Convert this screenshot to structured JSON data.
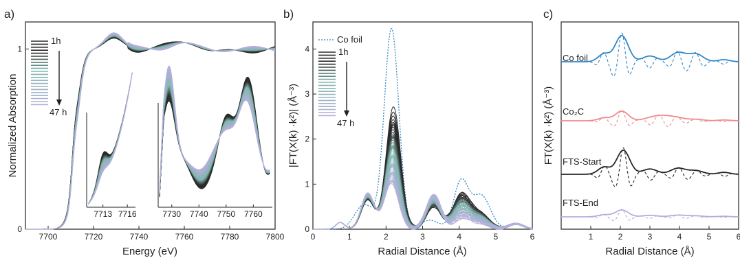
{
  "figure": {
    "panels": [
      "a)",
      "b)",
      "c)"
    ]
  },
  "colors": {
    "dark": "#2b2b2b",
    "teal": "#7fb7ae",
    "lavender": "#b6b0dd",
    "co_foil": "#2f87c6",
    "co2c": "#f08a8a",
    "fts_start": "#262626",
    "fts_end": "#b3aee0"
  },
  "chart_data": [
    {
      "panel": "a)",
      "type": "line",
      "xlabel": "Energy (eV)",
      "ylabel": "Normalized Absorption",
      "xlim": [
        7690,
        7800
      ],
      "ylim": [
        0,
        1.15
      ],
      "xticks": [
        "7700",
        "7720",
        "7740",
        "7760",
        "7780",
        "7800"
      ],
      "yticks": [
        "0",
        "1"
      ],
      "legend": {
        "start": "1h",
        "end": "47 h"
      },
      "series_count": 47,
      "edge_energy": 7712,
      "first_peak": {
        "x": 7729,
        "y": 1.06
      },
      "insets": [
        {
          "xticks": [
            "7713",
            "7716"
          ],
          "xlim": [
            7711,
            7717
          ]
        },
        {
          "xticks": [
            "7730",
            "7740",
            "7750",
            "7760"
          ],
          "xlim": [
            7725,
            7767
          ]
        }
      ]
    },
    {
      "panel": "b)",
      "type": "line",
      "xlabel": "Radial Distance (Å)",
      "ylabel": "|FT(X(k) ·k²)| (Å⁻³)",
      "xlim": [
        0,
        6
      ],
      "ylim": [
        0,
        4.6
      ],
      "xticks": [
        "0",
        "1",
        "2",
        "3",
        "4",
        "5",
        "6"
      ],
      "yticks": [
        "0",
        "1",
        "2",
        "3",
        "4"
      ],
      "legend": {
        "reference": "Co foil",
        "start": "1h",
        "end": "47 h"
      },
      "reference_peaks": [
        {
          "x": 2.15,
          "y": 4.45
        },
        {
          "x": 4.05,
          "y": 1.05
        },
        {
          "x": 4.6,
          "y": 0.75
        }
      ],
      "sample_main_peak": {
        "x": 2.2,
        "y_first": 2.7,
        "y_last": 1.0
      },
      "sample_secondary_peaks": [
        {
          "x": 0.75,
          "y": 0.15
        },
        {
          "x": 1.5,
          "y": 0.8
        },
        {
          "x": 3.3,
          "y": 0.75
        },
        {
          "x": 4.05,
          "y": 0.75
        }
      ]
    },
    {
      "panel": "c)",
      "type": "line",
      "xlabel": "Radial Distance (Å)",
      "ylabel": "FT(X(k) ·k²) (Å⁻³)",
      "xlim": [
        0,
        6
      ],
      "xticks": [
        "1",
        "2",
        "3",
        "4",
        "5",
        "6"
      ],
      "series": [
        {
          "name": "Co foil",
          "main_peak": {
            "x": 2.05,
            "height": 1.0
          }
        },
        {
          "name": "Co₂C",
          "main_peak": {
            "x": 2.05,
            "height": 0.35
          }
        },
        {
          "name": "FTS-Start",
          "main_peak": {
            "x": 2.1,
            "height": 0.7
          }
        },
        {
          "name": "FTS-End",
          "main_peak": {
            "x": 2.05,
            "height": 0.25
          }
        }
      ]
    }
  ]
}
